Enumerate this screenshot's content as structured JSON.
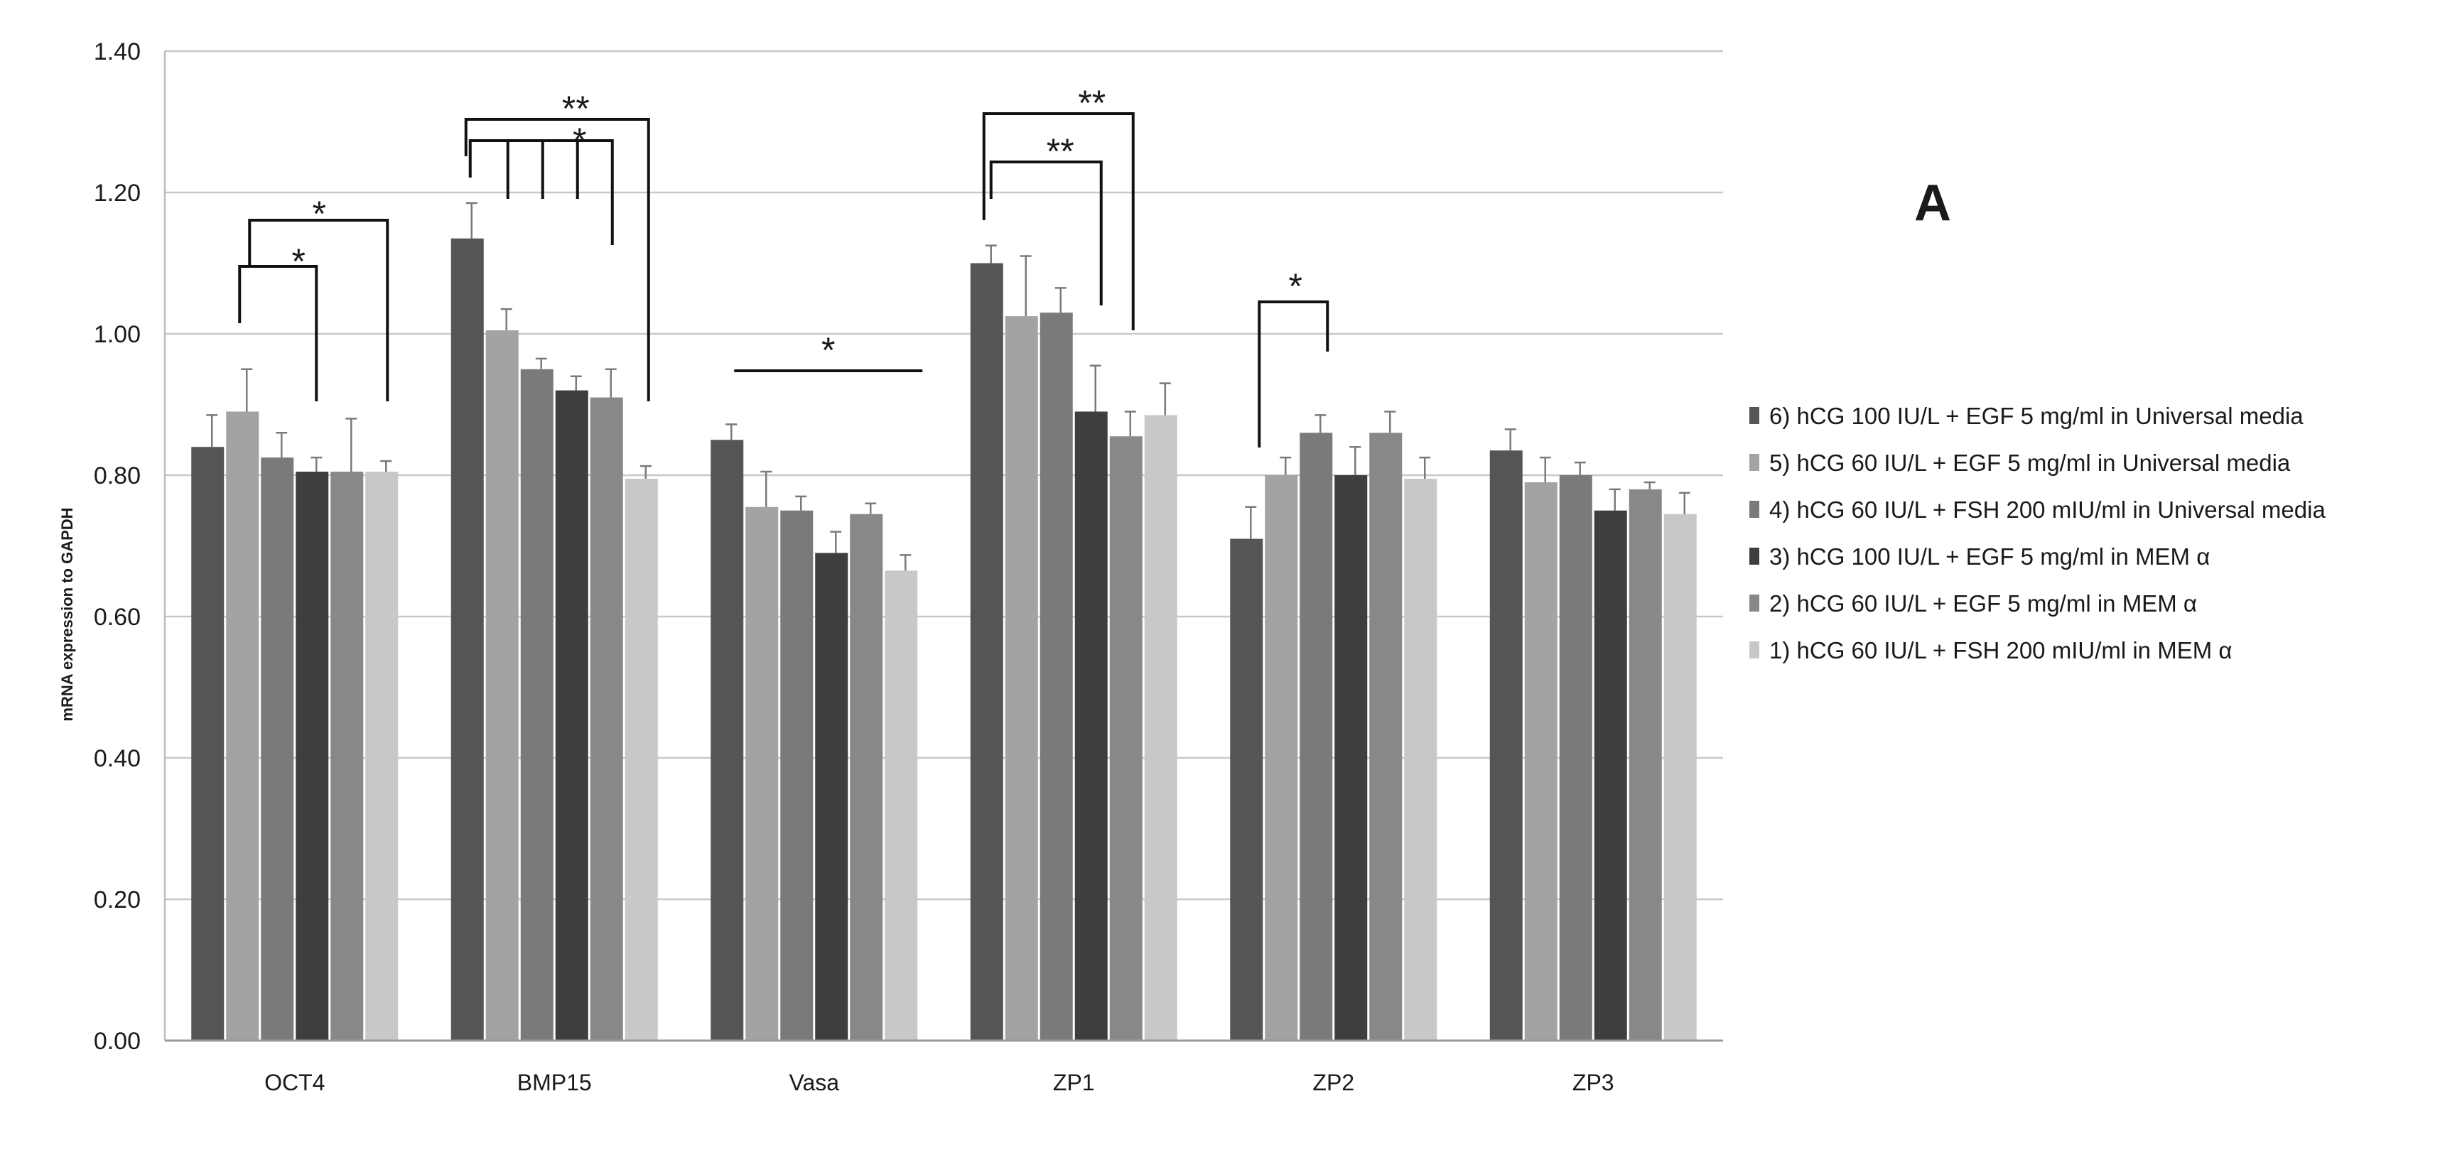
{
  "chart_data": {
    "type": "bar",
    "panel_label": "A",
    "ylabel": "mRNA expression to GAPDH",
    "xlabel": "",
    "ylim": [
      0,
      1.4
    ],
    "yticks": [
      "0.00",
      "0.20",
      "0.40",
      "0.60",
      "0.80",
      "1.00",
      "1.20",
      "1.40"
    ],
    "grid": true,
    "legend_position": "right",
    "categories": [
      "OCT4",
      "BMP15",
      "Vasa",
      "ZP1",
      "ZP2",
      "ZP3"
    ],
    "series": [
      {
        "name": "6) hCG 100 IU/L + EGF 5 mg/ml in Universal media",
        "color": "#555555",
        "values": [
          0.84,
          1.135,
          0.85,
          1.1,
          0.71,
          0.835
        ],
        "errors": [
          0.045,
          0.05,
          0.022,
          0.025,
          0.045,
          0.03
        ]
      },
      {
        "name": "5) hCG 60 IU/L  + EGF 5 mg/ml in Universal media",
        "color": "#a3a3a3",
        "values": [
          0.89,
          1.005,
          0.755,
          1.025,
          0.8,
          0.79
        ],
        "errors": [
          0.06,
          0.03,
          0.05,
          0.085,
          0.025,
          0.035
        ]
      },
      {
        "name": "4) hCG 60 IU/L + FSH 200 mIU/ml in Universal media",
        "color": "#7a7a7a",
        "values": [
          0.825,
          0.95,
          0.75,
          1.03,
          0.86,
          0.8
        ],
        "errors": [
          0.035,
          0.015,
          0.02,
          0.035,
          0.025,
          0.018
        ]
      },
      {
        "name": "3) hCG 100 IU/L + EGF 5 mg/ml in MEM α",
        "color": "#3e3e3e",
        "values": [
          0.805,
          0.92,
          0.69,
          0.89,
          0.8,
          0.75
        ],
        "errors": [
          0.02,
          0.02,
          0.03,
          0.065,
          0.04,
          0.03
        ]
      },
      {
        "name": "2) hCG 60 IU/L + EGF 5 mg/ml in MEM α",
        "color": "#888888",
        "values": [
          0.805,
          0.91,
          0.745,
          0.855,
          0.86,
          0.78
        ],
        "errors": [
          0.075,
          0.04,
          0.015,
          0.035,
          0.03,
          0.01
        ]
      },
      {
        "name": "1) hCG 60 IU/L + FSH 200 mIU/ml in MEM α",
        "color": "#c8c8c8",
        "values": [
          0.805,
          0.795,
          0.665,
          0.885,
          0.795,
          0.745
        ],
        "errors": [
          0.015,
          0.018,
          0.022,
          0.045,
          0.03,
          0.03
        ]
      }
    ],
    "significance": [
      {
        "label": "*",
        "category": "OCT4"
      },
      {
        "label": "*",
        "category": "OCT4"
      },
      {
        "label": "**",
        "category": "BMP15"
      },
      {
        "label": "*",
        "category": "BMP15"
      },
      {
        "label": "*",
        "category": "Vasa"
      },
      {
        "label": "**",
        "category": "ZP1"
      },
      {
        "label": "**",
        "category": "ZP1"
      },
      {
        "label": "*",
        "category": "ZP2"
      }
    ]
  }
}
